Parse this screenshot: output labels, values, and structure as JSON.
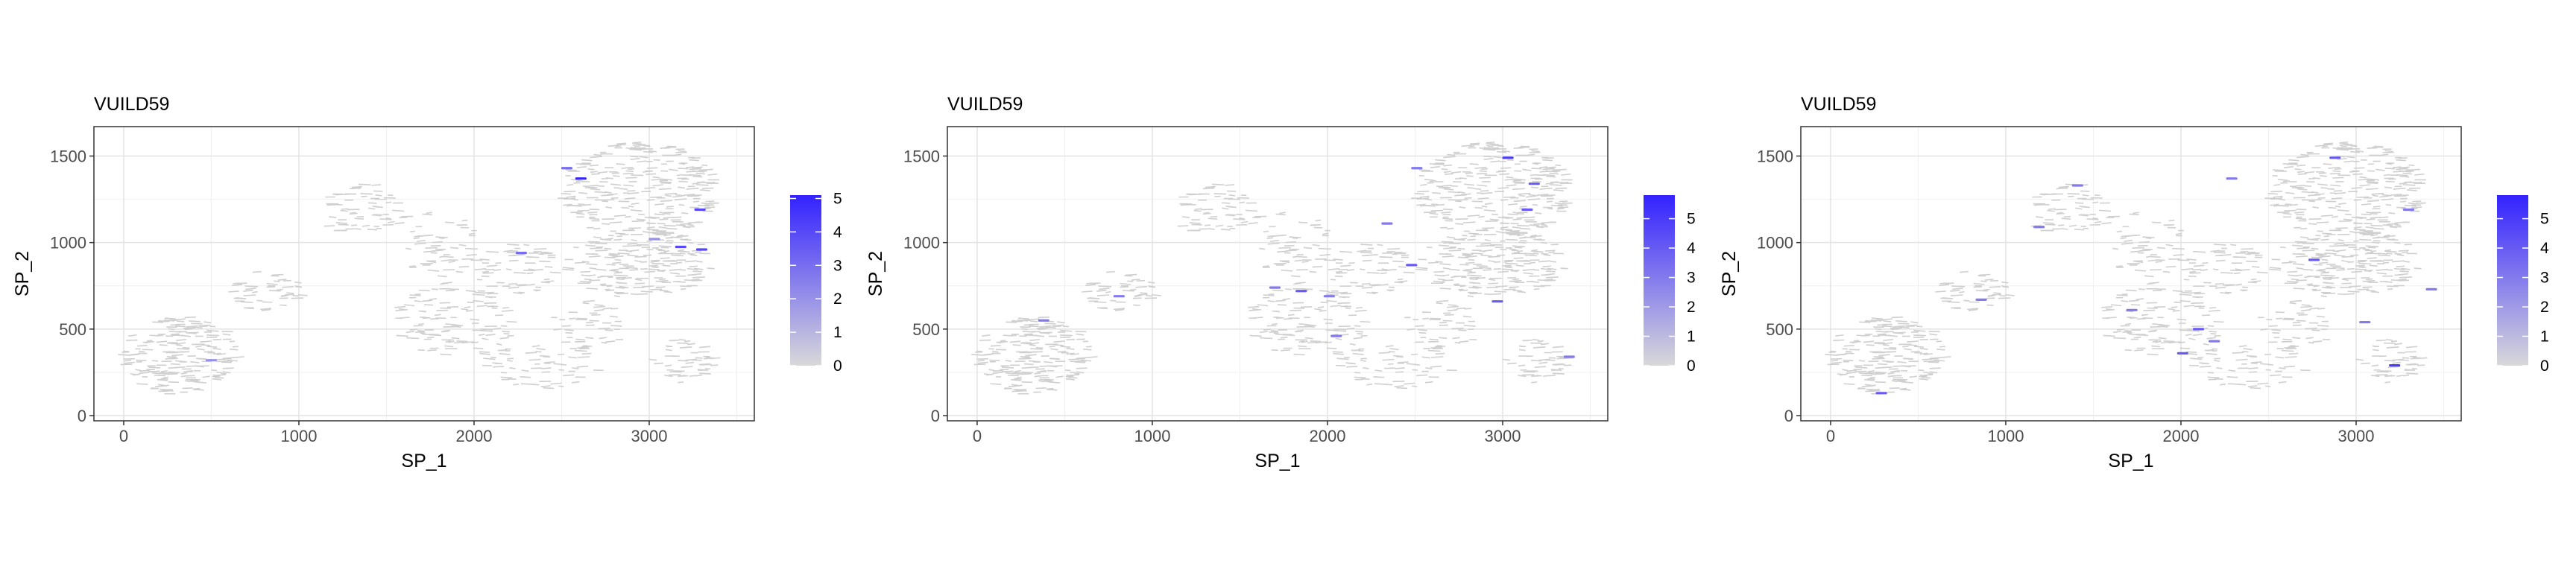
{
  "chart_data": [
    {
      "type": "scatter",
      "title": "VUILD59",
      "xlabel": "SP_1",
      "ylabel": "SP_2",
      "xlim": [
        -170,
        3600
      ],
      "ylim": [
        -30,
        1670
      ],
      "xticks": [
        0,
        1000,
        2000,
        3000
      ],
      "yticks": [
        0,
        500,
        1000,
        1500
      ],
      "grid": true,
      "legend": {
        "position": "right",
        "min": 0,
        "max": 5.1,
        "ticks": [
          0,
          1,
          2,
          3,
          4,
          5
        ],
        "low_color": "#d9d9d9",
        "high_color": "#3322ff"
      },
      "points": [
        {
          "x": 500,
          "y": 320,
          "value": 2
        },
        {
          "x": 2270,
          "y": 940,
          "value": 3
        },
        {
          "x": 2530,
          "y": 1430,
          "value": 3
        },
        {
          "x": 2610,
          "y": 1370,
          "value": 5
        },
        {
          "x": 3030,
          "y": 1020,
          "value": 2
        },
        {
          "x": 3180,
          "y": 975,
          "value": 4
        },
        {
          "x": 3290,
          "y": 1190,
          "value": 4
        },
        {
          "x": 3300,
          "y": 960,
          "value": 4
        }
      ]
    },
    {
      "type": "scatter",
      "title": "VUILD59",
      "xlabel": "SP_1",
      "ylabel": "SP_2",
      "xlim": [
        -170,
        3600
      ],
      "ylim": [
        -30,
        1670
      ],
      "xticks": [
        0,
        1000,
        2000,
        3000
      ],
      "yticks": [
        0,
        500,
        1000,
        1500
      ],
      "grid": true,
      "legend": {
        "position": "right",
        "min": 0,
        "max": 5.8,
        "ticks": [
          0,
          1,
          2,
          3,
          4,
          5
        ],
        "low_color": "#d9d9d9",
        "high_color": "#3322ff"
      },
      "points": [
        {
          "x": 380,
          "y": 550,
          "value": 3
        },
        {
          "x": 810,
          "y": 690,
          "value": 3
        },
        {
          "x": 1700,
          "y": 740,
          "value": 3
        },
        {
          "x": 1850,
          "y": 720,
          "value": 4
        },
        {
          "x": 2010,
          "y": 690,
          "value": 3
        },
        {
          "x": 2050,
          "y": 460,
          "value": 3
        },
        {
          "x": 2340,
          "y": 1110,
          "value": 3
        },
        {
          "x": 2480,
          "y": 870,
          "value": 4
        },
        {
          "x": 2510,
          "y": 1430,
          "value": 3
        },
        {
          "x": 2970,
          "y": 660,
          "value": 4
        },
        {
          "x": 3030,
          "y": 1490,
          "value": 5
        },
        {
          "x": 3140,
          "y": 1190,
          "value": 4
        },
        {
          "x": 3180,
          "y": 1340,
          "value": 4
        },
        {
          "x": 3380,
          "y": 340,
          "value": 3
        }
      ]
    },
    {
      "type": "scatter",
      "title": "VUILD59",
      "xlabel": "SP_1",
      "ylabel": "SP_2",
      "xlim": [
        -170,
        3600
      ],
      "ylim": [
        -30,
        1670
      ],
      "xticks": [
        0,
        1000,
        2000,
        3000
      ],
      "yticks": [
        0,
        500,
        1000,
        1500
      ],
      "grid": true,
      "legend": {
        "position": "right",
        "min": 0,
        "max": 5.8,
        "ticks": [
          0,
          1,
          2,
          3,
          4,
          5
        ],
        "low_color": "#d9d9d9",
        "high_color": "#3322ff"
      },
      "points": [
        {
          "x": 290,
          "y": 130,
          "value": 4
        },
        {
          "x": 860,
          "y": 670,
          "value": 3
        },
        {
          "x": 1190,
          "y": 1090,
          "value": 3
        },
        {
          "x": 1410,
          "y": 1330,
          "value": 3
        },
        {
          "x": 1720,
          "y": 610,
          "value": 3
        },
        {
          "x": 2010,
          "y": 360,
          "value": 4
        },
        {
          "x": 2100,
          "y": 500,
          "value": 4
        },
        {
          "x": 2190,
          "y": 430,
          "value": 3
        },
        {
          "x": 2290,
          "y": 1370,
          "value": 3
        },
        {
          "x": 2760,
          "y": 900,
          "value": 4
        },
        {
          "x": 2880,
          "y": 1490,
          "value": 4
        },
        {
          "x": 3050,
          "y": 540,
          "value": 3
        },
        {
          "x": 3220,
          "y": 290,
          "value": 5
        },
        {
          "x": 3300,
          "y": 1190,
          "value": 3
        },
        {
          "x": 3430,
          "y": 730,
          "value": 3
        }
      ]
    }
  ]
}
